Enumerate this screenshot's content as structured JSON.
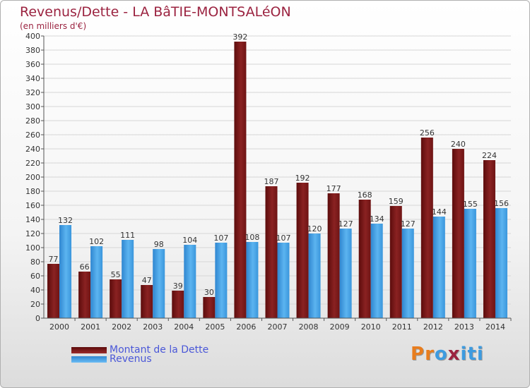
{
  "chart_data": {
    "type": "bar",
    "title": "Revenus/Dette - LA BâTIE-MONTSALéON",
    "subtitle": "(en milliers d'€)",
    "categories": [
      "2000",
      "2001",
      "2002",
      "2003",
      "2004",
      "2005",
      "2006",
      "2007",
      "2008",
      "2009",
      "2010",
      "2011",
      "2012",
      "2013",
      "2014"
    ],
    "series": [
      {
        "name": "Montant de la Dette",
        "color": "#7d1616",
        "values": [
          77,
          66,
          55,
          47,
          39,
          30,
          392,
          187,
          192,
          177,
          168,
          159,
          256,
          240,
          224
        ]
      },
      {
        "name": "Revenus",
        "color": "#3d9be0",
        "values": [
          132,
          102,
          111,
          98,
          104,
          107,
          108,
          107,
          120,
          127,
          134,
          127,
          144,
          155,
          156
        ]
      }
    ],
    "ylim": [
      0,
      400
    ],
    "yticks": [
      0,
      20,
      40,
      60,
      80,
      100,
      120,
      140,
      160,
      180,
      200,
      220,
      240,
      260,
      280,
      300,
      320,
      340,
      360,
      380,
      400
    ],
    "grid": true,
    "legend": "bottom-left"
  },
  "legend": {
    "dette_label": "Montant de la Dette",
    "revenus_label": "Revenus"
  },
  "logo": {
    "text": "Proxiti",
    "letters": [
      "P",
      "r",
      "o",
      "x",
      "i",
      "t",
      "i"
    ],
    "colors": [
      "#e87d1e",
      "#e87d1e",
      "#3d9be0",
      "#9b2340",
      "#3d9be0",
      "#3d9be0",
      "#3d9be0"
    ]
  }
}
